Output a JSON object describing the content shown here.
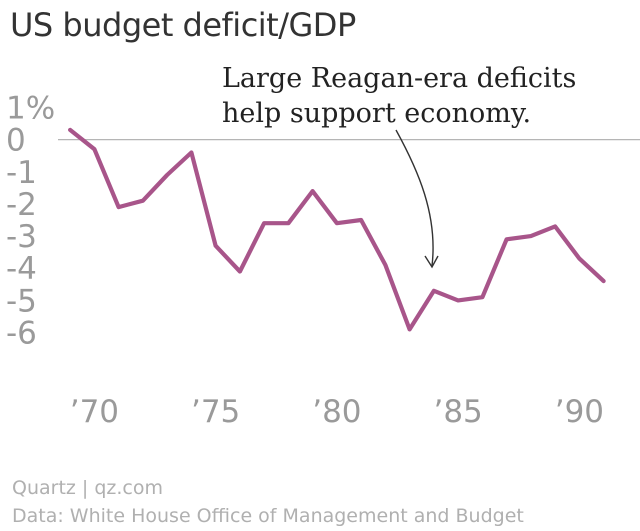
{
  "title": "US budget deficit/GDP",
  "annotation": {
    "line1": "Large Reagan-era deficits",
    "line2": "help support economy."
  },
  "credit": "Quartz | qz.com",
  "source": "Data: White House Office of Management and Budget",
  "colors": {
    "series": "#a8558a",
    "axis": "#a0a0a0",
    "zero_line": "#b5b5b5",
    "text": "#333333"
  },
  "chart_data": {
    "type": "line",
    "title": "US budget deficit/GDP",
    "xlabel": "",
    "ylabel": "",
    "x_tick_labels": [
      "’70",
      "’75",
      "’80",
      "’85",
      "’90"
    ],
    "x_ticks": [
      1970,
      1975,
      1980,
      1985,
      1990
    ],
    "y_tick_labels": [
      "1%",
      "0",
      "-1",
      "-2",
      "-3",
      "-4",
      "-5",
      "-6"
    ],
    "y_ticks": [
      1,
      0,
      -1,
      -2,
      -3,
      -4,
      -5,
      -6
    ],
    "xlim": [
      1968.5,
      1992.5
    ],
    "ylim": [
      -6.2,
      1.2
    ],
    "grid": false,
    "series": [
      {
        "x": [
          1969,
          1970,
          1971,
          1972,
          1973,
          1974,
          1975,
          1976,
          1977,
          1978,
          1979,
          1980,
          1981,
          1982,
          1983,
          1984,
          1985,
          1986,
          1987,
          1988,
          1989,
          1990,
          1991
        ],
        "values": [
          0.3,
          -0.3,
          -2.1,
          -1.9,
          -1.1,
          -0.4,
          -3.3,
          -4.1,
          -2.6,
          -2.6,
          -1.6,
          -2.6,
          -2.5,
          -3.9,
          -5.9,
          -4.7,
          -5.0,
          -4.9,
          -3.1,
          -3.0,
          -2.7,
          -3.7,
          -4.4
        ]
      }
    ]
  }
}
